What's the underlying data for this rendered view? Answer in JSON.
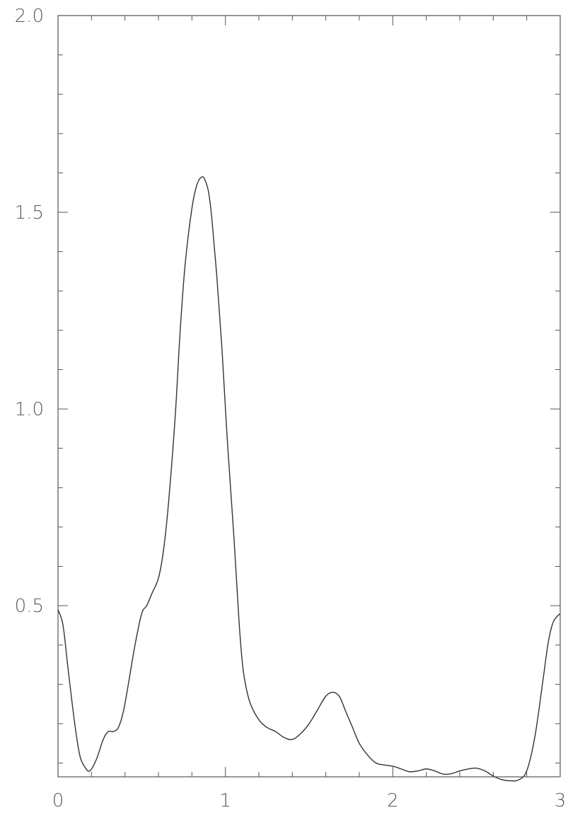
{
  "chart_data": {
    "type": "line",
    "title": "",
    "xlabel": "",
    "ylabel": "",
    "xlim": [
      0,
      3
    ],
    "ylim": [
      0.065,
      2.0
    ],
    "grid": false,
    "legend": "none",
    "line_color": "#333333",
    "x_ticks": [
      {
        "value": 0,
        "label": "0"
      },
      {
        "value": 1,
        "label": "1"
      },
      {
        "value": 2,
        "label": "2"
      },
      {
        "value": 3,
        "label": "3"
      }
    ],
    "y_ticks": [
      {
        "value": 0.5,
        "label": "0.5"
      },
      {
        "value": 1.0,
        "label": "1.0"
      },
      {
        "value": 1.5,
        "label": "1.5"
      },
      {
        "value": 2.0,
        "label": "2.0"
      }
    ],
    "series": [
      {
        "x": [
          0.0,
          0.03,
          0.06,
          0.1,
          0.13,
          0.16,
          0.19,
          0.23,
          0.27,
          0.3,
          0.33,
          0.36,
          0.39,
          0.42,
          0.46,
          0.5,
          0.53,
          0.56,
          0.6,
          0.63,
          0.66,
          0.7,
          0.73,
          0.76,
          0.8,
          0.83,
          0.86,
          0.88,
          0.9,
          0.92,
          0.95,
          0.98,
          1.01,
          1.05,
          1.08,
          1.1,
          1.12,
          1.15,
          1.2,
          1.25,
          1.3,
          1.35,
          1.4,
          1.45,
          1.5,
          1.55,
          1.6,
          1.64,
          1.68,
          1.72,
          1.76,
          1.8,
          1.85,
          1.9,
          1.95,
          2.0,
          2.05,
          2.1,
          2.15,
          2.2,
          2.25,
          2.3,
          2.35,
          2.4,
          2.45,
          2.5,
          2.55,
          2.6,
          2.65,
          2.7,
          2.75,
          2.8,
          2.85,
          2.9,
          2.93,
          2.96,
          3.0
        ],
        "y": [
          0.49,
          0.45,
          0.34,
          0.2,
          0.12,
          0.09,
          0.08,
          0.11,
          0.16,
          0.18,
          0.18,
          0.19,
          0.23,
          0.3,
          0.4,
          0.48,
          0.5,
          0.53,
          0.57,
          0.64,
          0.76,
          0.98,
          1.2,
          1.37,
          1.51,
          1.57,
          1.59,
          1.58,
          1.55,
          1.48,
          1.33,
          1.15,
          0.93,
          0.68,
          0.47,
          0.36,
          0.3,
          0.25,
          0.21,
          0.19,
          0.18,
          0.165,
          0.16,
          0.175,
          0.2,
          0.235,
          0.27,
          0.28,
          0.27,
          0.23,
          0.19,
          0.15,
          0.12,
          0.1,
          0.095,
          0.092,
          0.085,
          0.078,
          0.08,
          0.085,
          0.08,
          0.072,
          0.073,
          0.08,
          0.085,
          0.087,
          0.08,
          0.067,
          0.058,
          0.055,
          0.057,
          0.08,
          0.17,
          0.32,
          0.41,
          0.46,
          0.48
        ]
      }
    ]
  }
}
